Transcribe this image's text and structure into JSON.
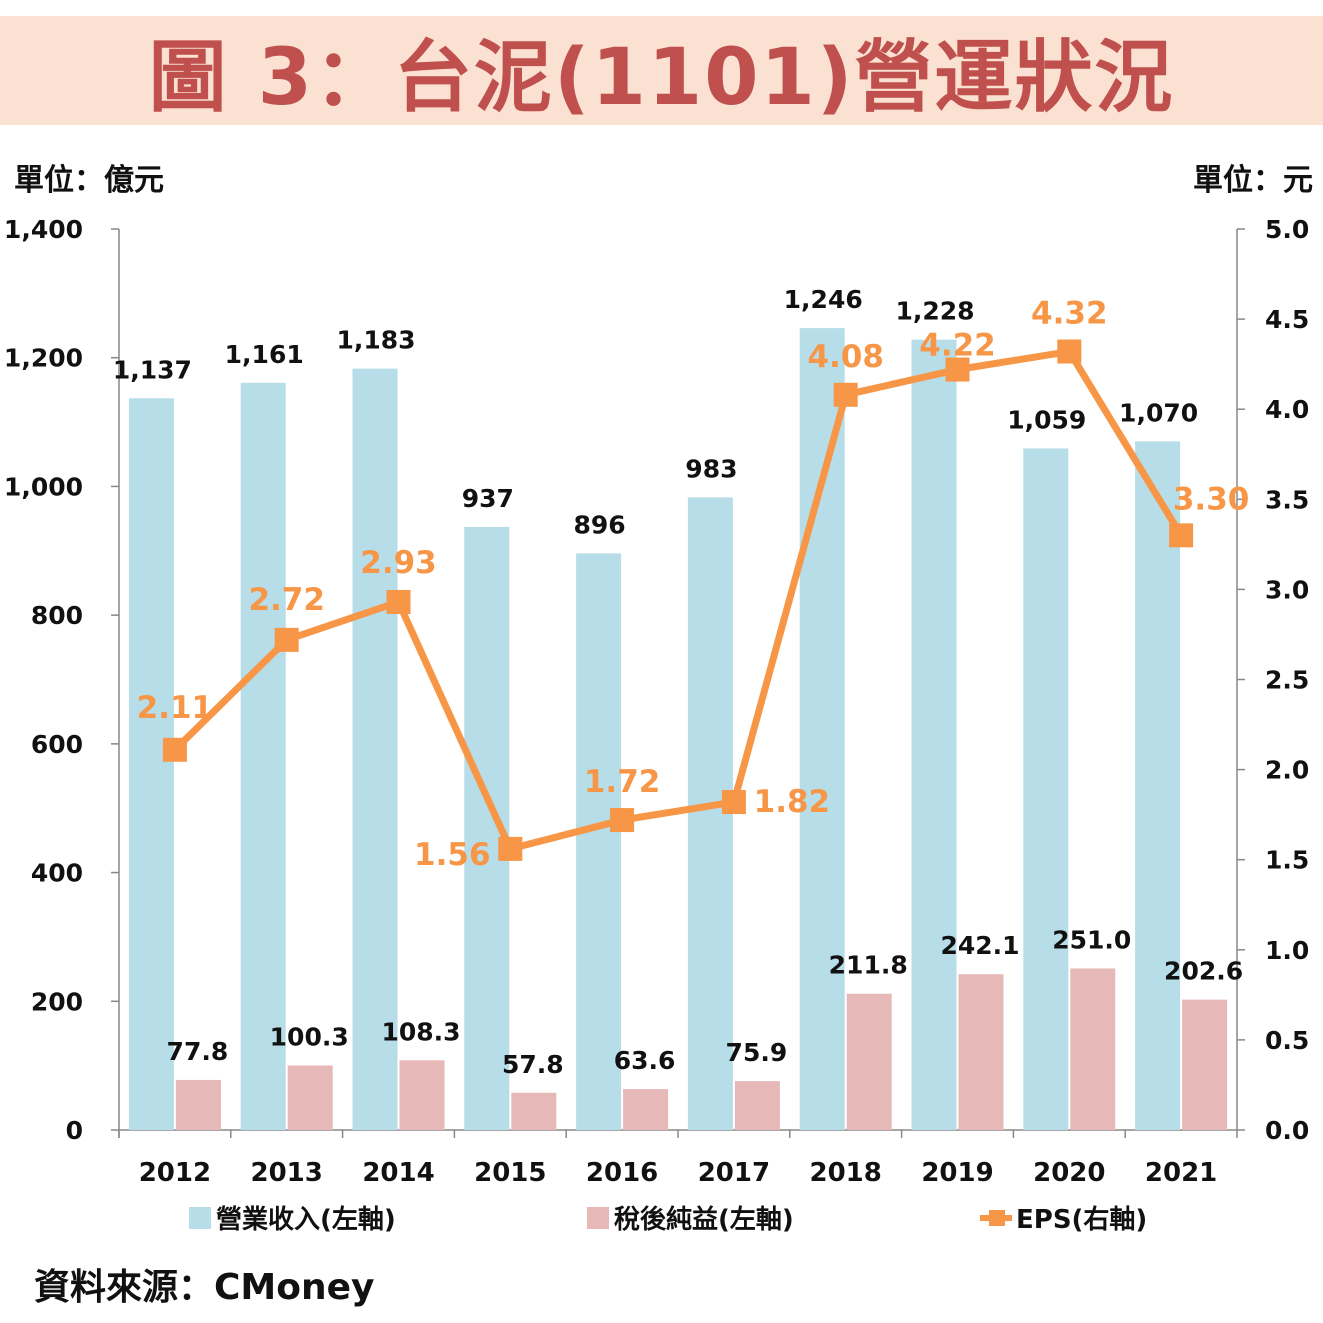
{
  "title": "圖 3：台泥(1101)營運狀況",
  "unit_left": "單位：億元",
  "unit_right": "單位：元",
  "source": "資料來源：CMoney",
  "colors": {
    "revenue": "#b7dde8",
    "net_income": "#e6b8b7",
    "eps": "#f79646",
    "title_bg": "#fbe1d2",
    "title_text": "#c0504d"
  },
  "chart_data": {
    "type": "bar",
    "categories": [
      "2012",
      "2013",
      "2014",
      "2015",
      "2016",
      "2017",
      "2018",
      "2019",
      "2020",
      "2021"
    ],
    "series": [
      {
        "name": "營業收入(左軸)",
        "type": "bar",
        "axis": "left",
        "values": [
          1137,
          1161,
          1183,
          937,
          896,
          983,
          1246,
          1228,
          1059,
          1070
        ],
        "labels": [
          "1,137",
          "1,161",
          "1,183",
          "937",
          "896",
          "983",
          "1,246",
          "1,228",
          "1,059",
          "1,070"
        ]
      },
      {
        "name": "稅後純益(左軸)",
        "type": "bar",
        "axis": "left",
        "values": [
          77.8,
          100.3,
          108.3,
          57.8,
          63.6,
          75.9,
          211.8,
          242.1,
          251.0,
          202.6
        ],
        "labels": [
          "77.8",
          "100.3",
          "108.3",
          "57.8",
          "63.6",
          "75.9",
          "211.8",
          "242.1",
          "251.0",
          "202.6"
        ]
      },
      {
        "name": "EPS(右軸)",
        "type": "line",
        "axis": "right",
        "values": [
          2.11,
          2.72,
          2.93,
          1.56,
          1.72,
          1.82,
          4.08,
          4.22,
          4.32,
          3.3
        ],
        "labels": [
          "2.11",
          "2.72",
          "2.93",
          "1.56",
          "1.72",
          "1.82",
          "4.08",
          "4.22",
          "4.32",
          "3.30"
        ]
      }
    ],
    "y_left": {
      "lim": [
        0,
        1400
      ],
      "ticks": [
        "0",
        "200",
        "400",
        "600",
        "800",
        "1,000",
        "1,200",
        "1,400"
      ]
    },
    "y_right": {
      "lim": [
        0,
        5.0
      ],
      "ticks": [
        "0.0",
        "0.5",
        "1.0",
        "1.5",
        "2.0",
        "2.5",
        "3.0",
        "3.5",
        "4.0",
        "4.5",
        "5.0"
      ]
    },
    "grid": false,
    "legend": "bottom"
  }
}
